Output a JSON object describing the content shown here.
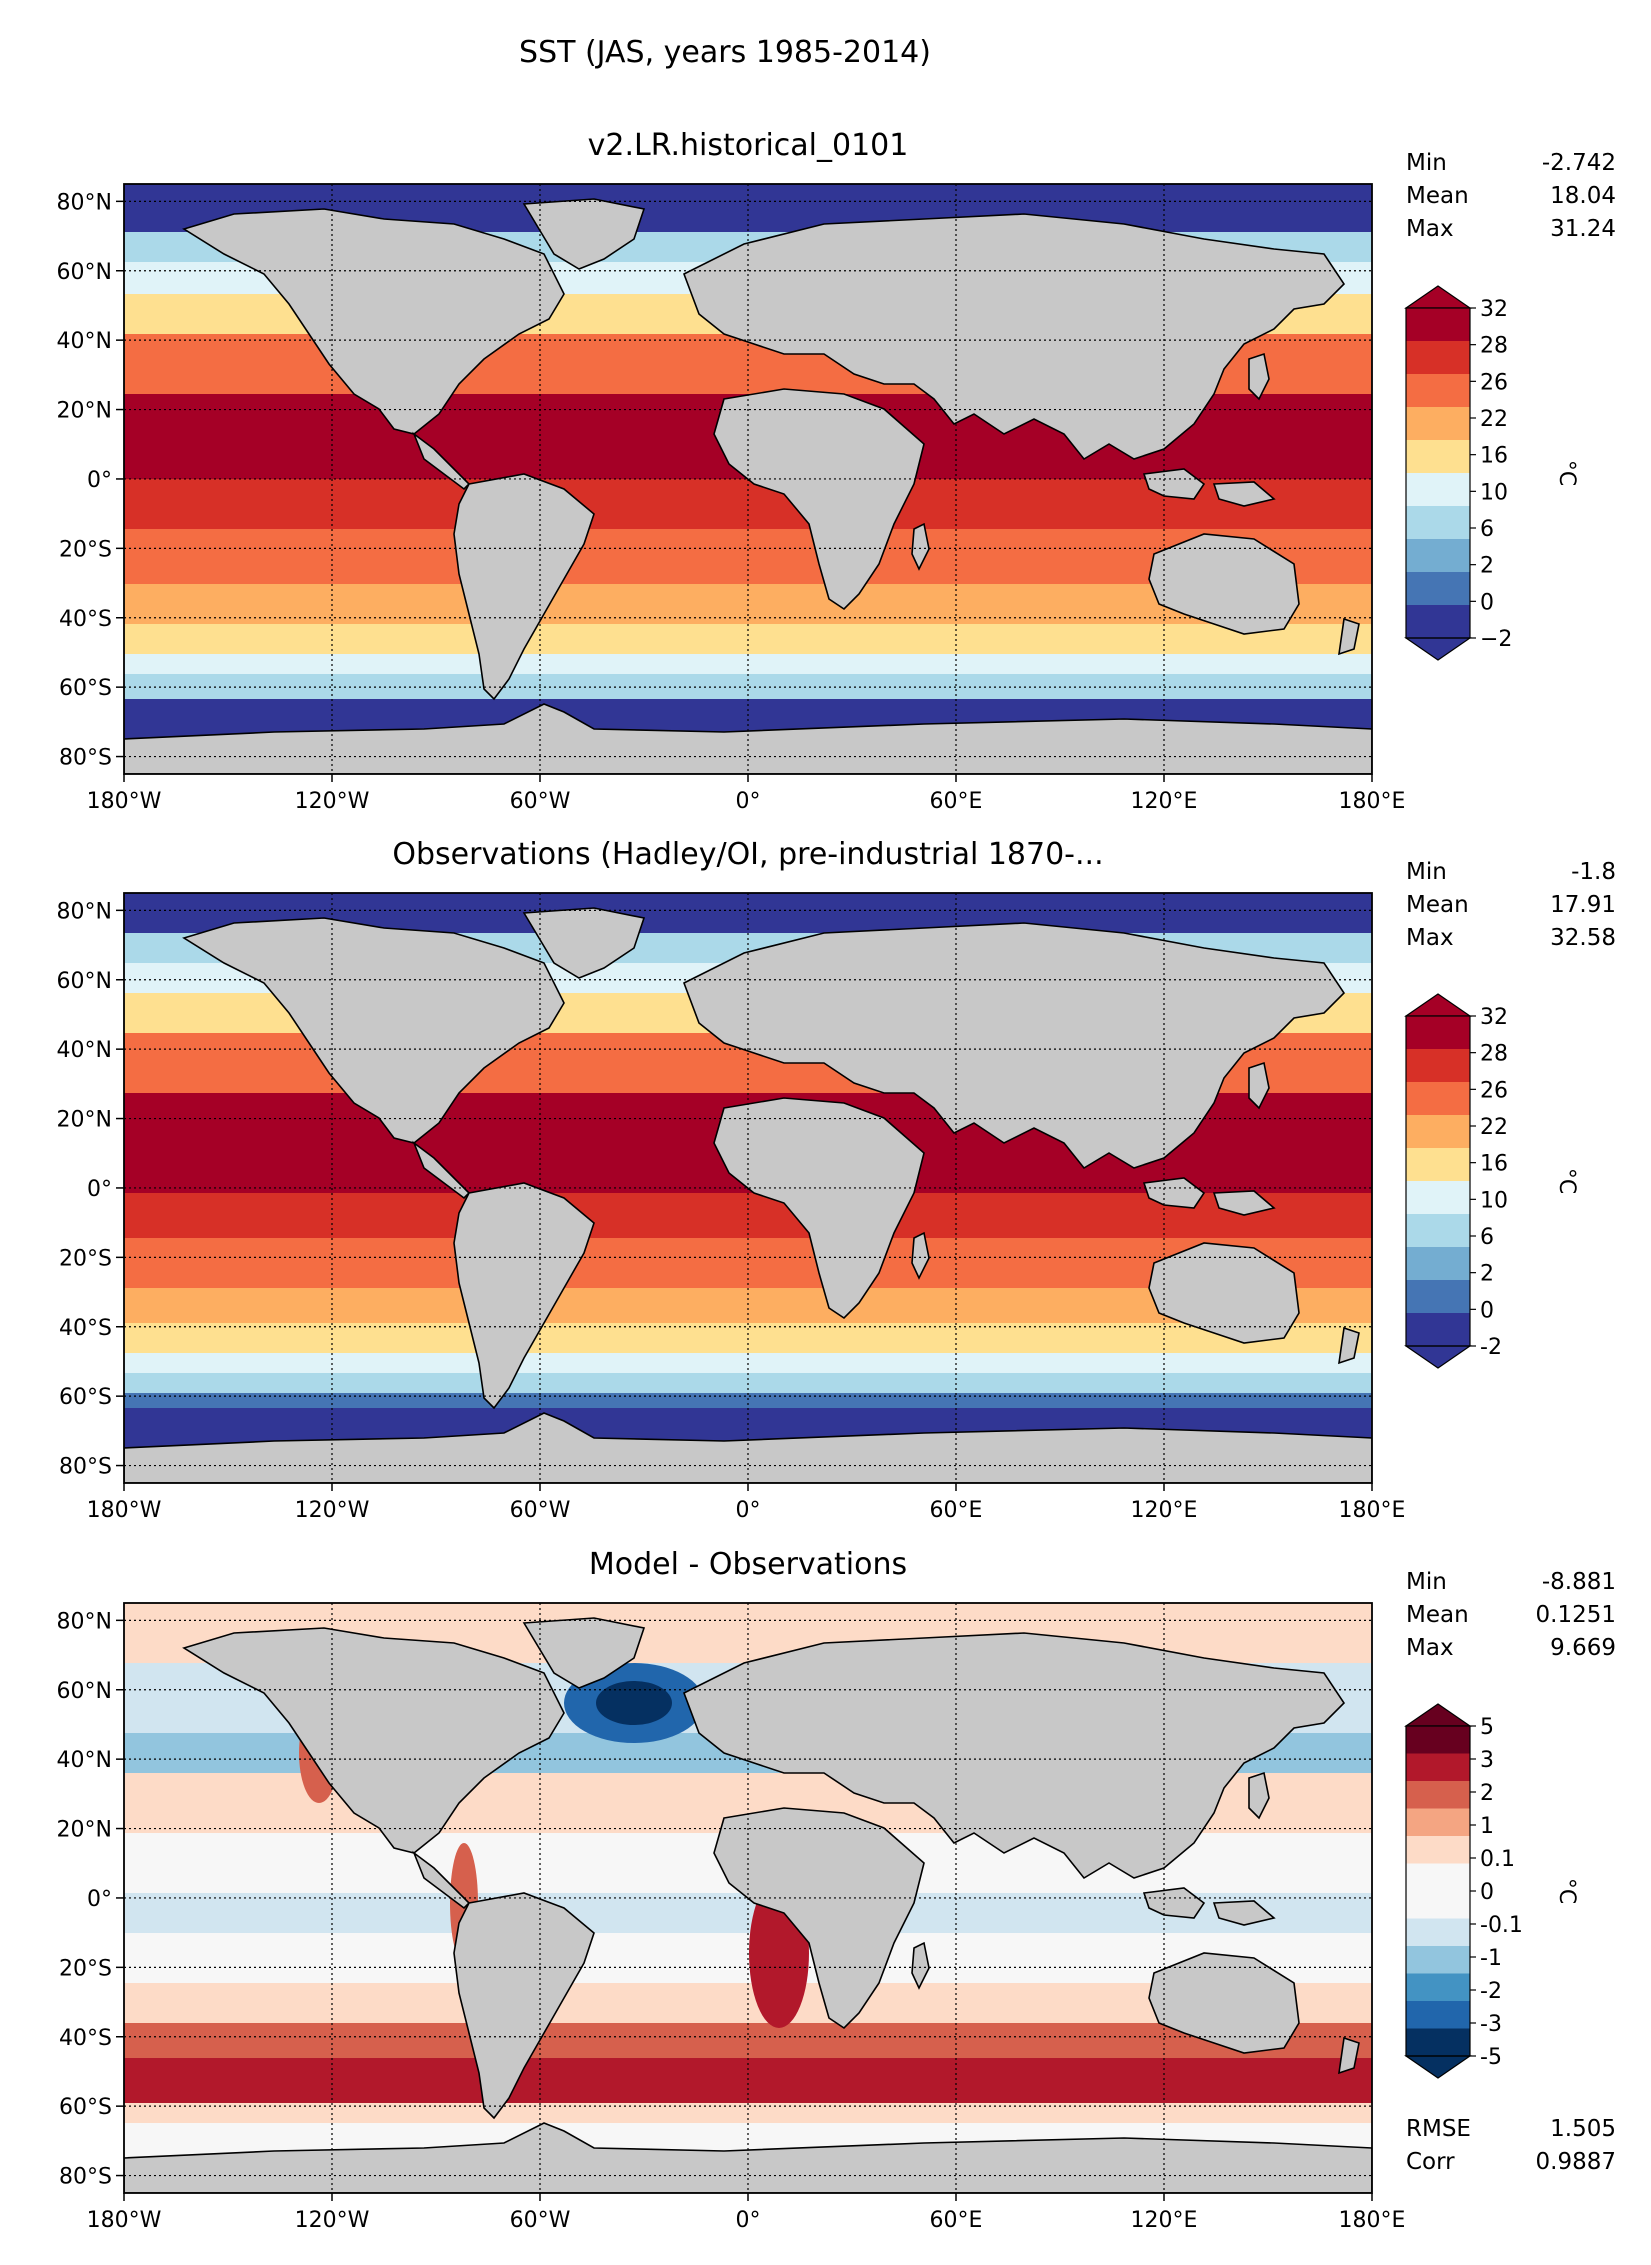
{
  "figure": {
    "title": "SST (JAS, years 1985-2014)"
  },
  "axes": {
    "lat_labels": [
      "80°N",
      "60°N",
      "40°N",
      "20°N",
      "0°",
      "20°S",
      "40°S",
      "60°S",
      "80°S"
    ],
    "lon_labels": [
      "180°W",
      "120°W",
      "60°W",
      "0°",
      "60°E",
      "120°E",
      "180°E"
    ]
  },
  "panels": [
    {
      "id": "model",
      "title": "v2.LR.historical_0101",
      "stats": [
        {
          "label": "Min",
          "value": "-2.742"
        },
        {
          "label": "Mean",
          "value": "18.04"
        },
        {
          "label": "Max",
          "value": "31.24"
        }
      ],
      "colorbar": {
        "unit": "°C",
        "levels": [
          "32",
          "28",
          "26",
          "22",
          "16",
          "10",
          "6",
          "2",
          "0",
          "−2"
        ],
        "colors": [
          "#a50026",
          "#d73027",
          "#f46d43",
          "#fdae61",
          "#fee090",
          "#e0f3f8",
          "#abd9e9",
          "#74add1",
          "#4575b4",
          "#313695"
        ]
      },
      "extra_stats": []
    },
    {
      "id": "obs",
      "title": "Observations (Hadley/OI, pre-industrial 1870-...",
      "stats": [
        {
          "label": "Min",
          "value": "-1.8"
        },
        {
          "label": "Mean",
          "value": "17.91"
        },
        {
          "label": "Max",
          "value": "32.58"
        }
      ],
      "colorbar": {
        "unit": "°C",
        "levels": [
          "32",
          "28",
          "26",
          "22",
          "16",
          "10",
          "6",
          "2",
          "0",
          "-2"
        ],
        "colors": [
          "#a50026",
          "#d73027",
          "#f46d43",
          "#fdae61",
          "#fee090",
          "#e0f3f8",
          "#abd9e9",
          "#74add1",
          "#4575b4",
          "#313695"
        ]
      },
      "extra_stats": []
    },
    {
      "id": "diff",
      "title": "Model - Observations",
      "stats": [
        {
          "label": "Min",
          "value": "-8.881"
        },
        {
          "label": "Mean",
          "value": "0.1251"
        },
        {
          "label": "Max",
          "value": "9.669"
        }
      ],
      "colorbar": {
        "unit": "°C",
        "levels": [
          "5",
          "3",
          "2",
          "1",
          "0.1",
          "0",
          "-0.1",
          "-1",
          "-2",
          "-3",
          "-5"
        ],
        "colors": [
          "#67001f",
          "#b2182b",
          "#d6604d",
          "#f4a582",
          "#fddbc7",
          "#f7f7f7",
          "#f7f7f7",
          "#d1e5f0",
          "#92c5de",
          "#4393c3",
          "#2166ac",
          "#053061"
        ]
      },
      "extra_stats": [
        {
          "label": "RMSE",
          "value": "1.505"
        },
        {
          "label": "Corr",
          "value": "0.9887"
        }
      ]
    }
  ],
  "colors": {
    "land": "#c8c8c8",
    "coast": "#000000",
    "grid": "#000000"
  }
}
